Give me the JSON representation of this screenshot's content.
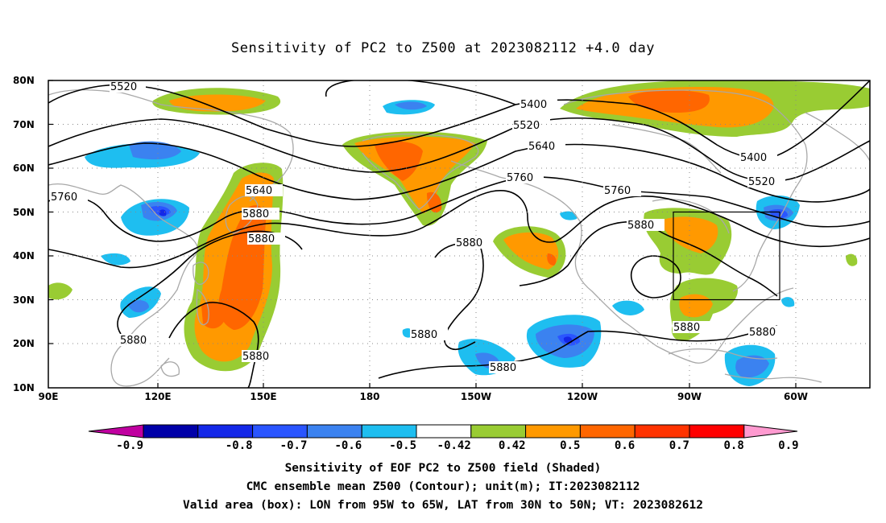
{
  "title": "Sensitivity of PC2 to Z500 at 2023082112 +4.0 day",
  "lat_labels": [
    "80N",
    "70N",
    "60N",
    "50N",
    "40N",
    "30N",
    "20N",
    "10N"
  ],
  "lon_labels": [
    "90E",
    "120E",
    "150E",
    "180",
    "150W",
    "120W",
    "90W",
    "60W"
  ],
  "contour_labels": [
    "5520",
    "5400",
    "5520",
    "5640",
    "5400",
    "5520",
    "5760",
    "5640",
    "5760",
    "5760",
    "5880",
    "5880",
    "5880",
    "5880",
    "5880",
    "5880",
    "5880",
    "5880"
  ],
  "colorbar": {
    "ticks": [
      "-0.9",
      "-0.8",
      "-0.7",
      "-0.6",
      "-0.5",
      "-0.42",
      "0.42",
      "0.5",
      "0.6",
      "0.7",
      "0.8",
      "0.9"
    ],
    "colors": [
      "#c000a0",
      "#0000a8",
      "#1428e8",
      "#2a55ff",
      "#3b82f0",
      "#1ebef0",
      "#ffffff",
      "#99cc33",
      "#ff9900",
      "#ff6600",
      "#ff3300",
      "#ff0000",
      "#ff9ad0"
    ]
  },
  "captions": [
    "Sensitivity of EOF PC2 to Z500 field (Shaded)",
    "CMC ensemble mean Z500 (Contour); unit(m); IT:2023082112",
    "Valid area (box): LON from 95W to 65W, LAT from 30N to 50N; VT: 2023082612"
  ]
}
